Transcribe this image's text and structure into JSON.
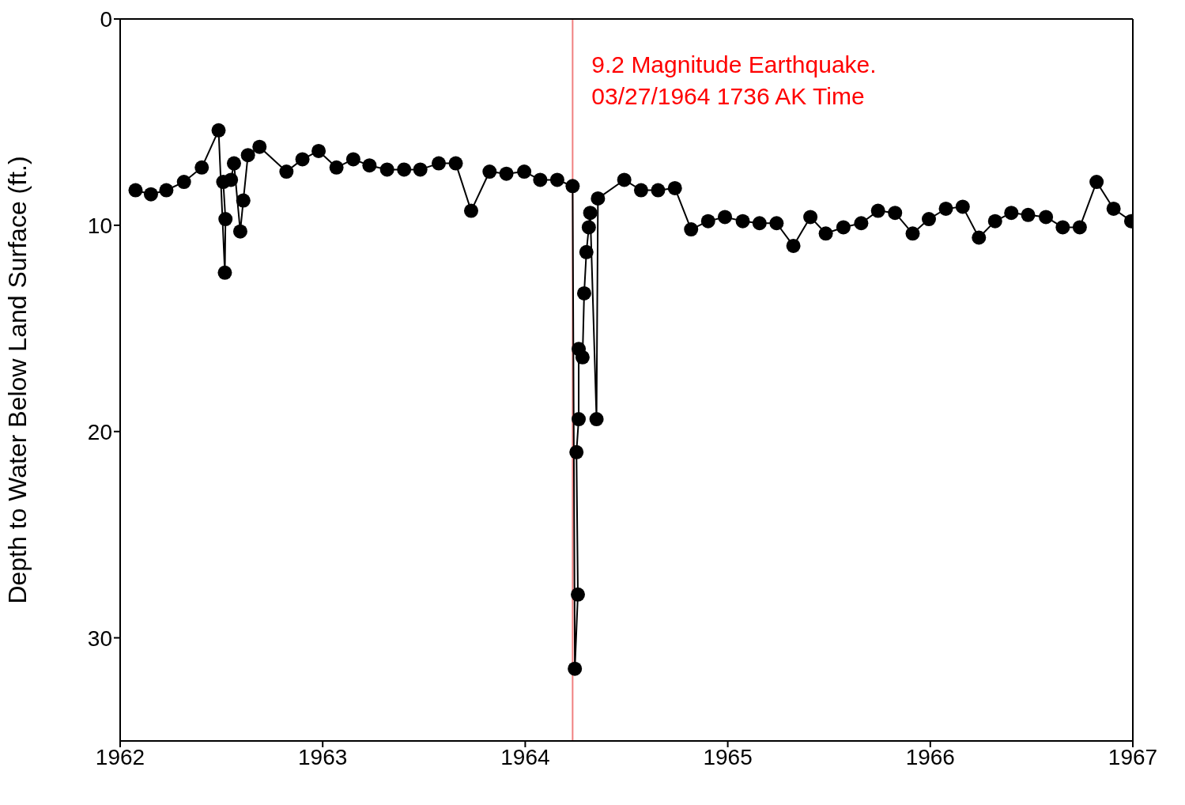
{
  "chart_data": {
    "type": "line",
    "ylabel": "Depth to Water Below Land Surface (ft.)",
    "xlim": [
      1962,
      1967
    ],
    "xticks": [
      1962,
      1963,
      1964,
      1965,
      1966,
      1967
    ],
    "ylim": [
      35,
      0
    ],
    "yticks": [
      0,
      10,
      20,
      30
    ],
    "grid": false,
    "legend": false,
    "marker": "circle",
    "line_style": "solid",
    "x": [
      1962.076,
      1962.152,
      1962.228,
      1962.315,
      1962.403,
      1962.486,
      1962.517,
      1962.52,
      1962.509,
      1962.547,
      1962.562,
      1962.593,
      1962.608,
      1962.631,
      1962.688,
      1962.821,
      1962.9,
      1962.98,
      1963.068,
      1963.151,
      1963.231,
      1963.318,
      1963.402,
      1963.482,
      1963.573,
      1963.657,
      1963.733,
      1963.824,
      1963.907,
      1963.995,
      1964.074,
      1964.158,
      1964.234,
      1964.245,
      1964.26,
      1964.253,
      1964.264,
      1964.264,
      1964.283,
      1964.291,
      1964.302,
      1964.314,
      1964.321,
      1964.352,
      1964.359,
      1964.489,
      1964.572,
      1964.656,
      1964.739,
      1964.819,
      1964.903,
      1964.986,
      1965.074,
      1965.157,
      1965.241,
      1965.324,
      1965.408,
      1965.484,
      1965.571,
      1965.659,
      1965.742,
      1965.826,
      1965.913,
      1965.993,
      1966.077,
      1966.16,
      1966.24,
      1966.32,
      1966.4,
      1966.483,
      1966.571,
      1966.654,
      1966.738,
      1966.821,
      1966.905,
      1966.992
    ],
    "series": [
      {
        "color": "#000000",
        "values": [
          8.3,
          8.5,
          8.3,
          7.9,
          7.2,
          5.4,
          12.3,
          9.7,
          7.9,
          7.8,
          7.0,
          10.3,
          8.8,
          6.6,
          6.2,
          7.4,
          6.8,
          6.4,
          7.2,
          6.8,
          7.1,
          7.3,
          7.3,
          7.3,
          7.0,
          7.0,
          9.3,
          7.4,
          7.5,
          7.4,
          7.8,
          7.8,
          8.1,
          31.5,
          27.9,
          21.0,
          19.4,
          16.0,
          16.4,
          13.3,
          11.3,
          10.1,
          9.4,
          19.4,
          8.7,
          7.8,
          8.3,
          8.3,
          8.2,
          10.2,
          9.8,
          9.6,
          9.8,
          9.9,
          9.9,
          11.0,
          9.6,
          10.4,
          10.1,
          9.9,
          9.3,
          9.4,
          10.4,
          9.7,
          9.2,
          9.1,
          10.6,
          9.8,
          9.4,
          9.5,
          9.6,
          10.1,
          10.1,
          7.9,
          9.2,
          9.8
        ]
      }
    ],
    "ref_lines": [
      {
        "axis": "x",
        "value": 1964.234,
        "label": "9.2 Magnitude Earthquake.\n03/27/1964 1736 AK Time",
        "color": "#f08080"
      }
    ]
  }
}
